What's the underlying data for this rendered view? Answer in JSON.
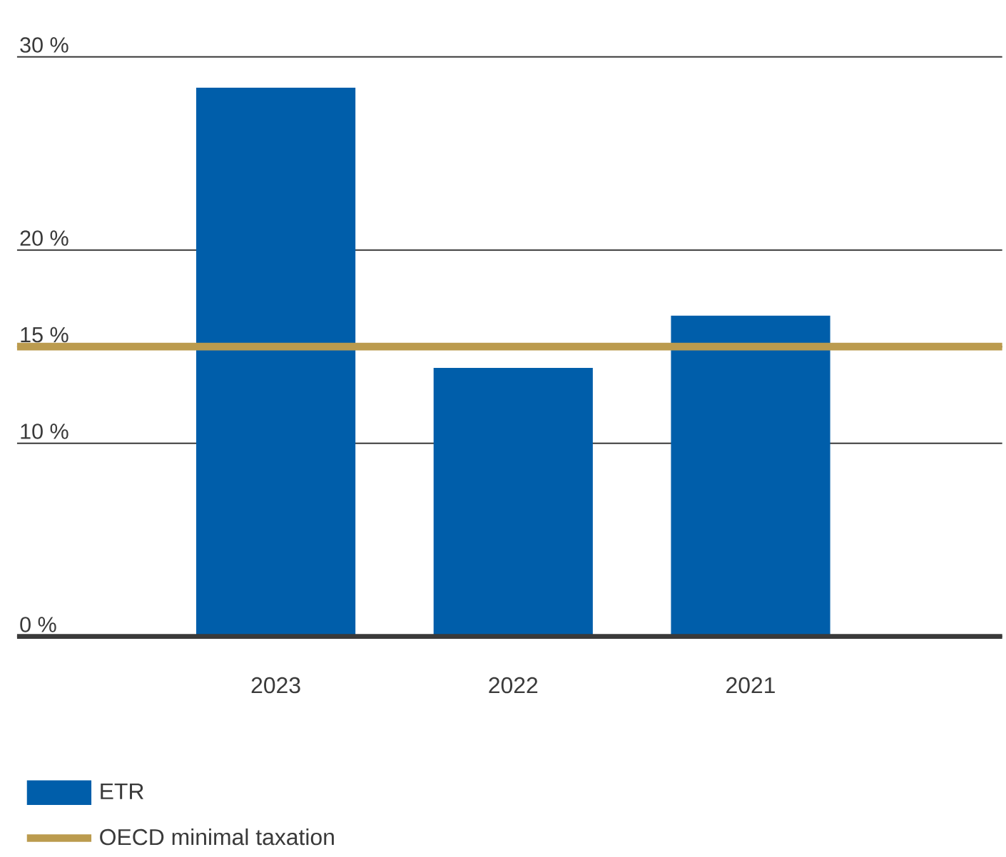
{
  "chart_data": {
    "type": "bar",
    "categories": [
      "2023",
      "2022",
      "2021"
    ],
    "series": [
      {
        "name": "ETR",
        "color": "#005eaa",
        "values": [
          28.4,
          13.9,
          16.6
        ]
      }
    ],
    "ylim": [
      0,
      30
    ],
    "yticks": [
      {
        "value": 0,
        "label": "0 %"
      },
      {
        "value": 10,
        "label": "10 %"
      },
      {
        "value": 15,
        "label": "15 %"
      },
      {
        "value": 20,
        "label": "20 %"
      },
      {
        "value": 30,
        "label": "30 %"
      }
    ],
    "ref_lines": [
      {
        "axis": "y",
        "value": 15,
        "label": "OECD minimal taxation",
        "color": "#bb9b4e"
      }
    ],
    "grid": "y",
    "legend": "bottom left"
  }
}
